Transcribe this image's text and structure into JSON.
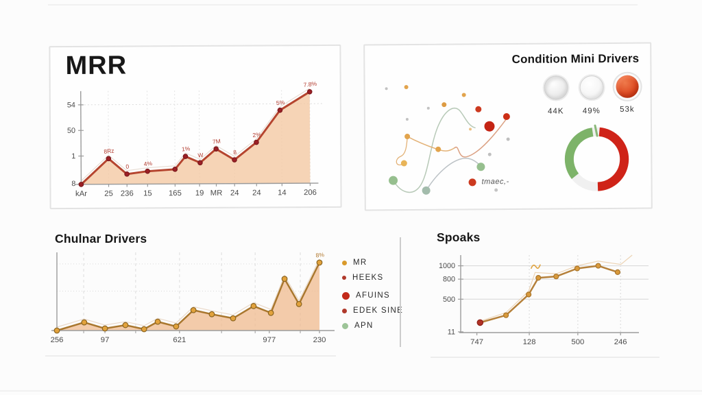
{
  "colors": {
    "mrr_line": "#b5452f",
    "mrr_marker": "#9c2026",
    "area_fill": "#f3c8a2",
    "chulnar_line": "#a9772e",
    "chulnar_marker": "#e2a23c",
    "spoaks_line": "#b5803a",
    "spoaks_marker": "#d99a3c",
    "spoaks_first_marker": "#b03226",
    "donut_green": "#7db369",
    "donut_red": "#cf2318",
    "mini_red": "#dd4a22"
  },
  "panels": {
    "mrr": {
      "title": "MRR"
    },
    "condition": {
      "title": "Condition Mini Drivers",
      "stats": [
        {
          "label": "44K"
        },
        {
          "label": "49%"
        },
        {
          "label": "53k"
        }
      ],
      "scatter_legend_label": "tmaec,-"
    },
    "chulnar": {
      "title": "Chulnar Drivers",
      "legend": [
        {
          "label": "MR",
          "color": "#d99a2b",
          "r": 3.5
        },
        {
          "label": "HEEKS",
          "color": "#b0392b",
          "r": 3
        },
        {
          "label": "AFUINS",
          "color": "#c22a1a",
          "r": 5.5
        },
        {
          "label": "EDEK SINE",
          "color": "#b0392b",
          "r": 3.5
        },
        {
          "label": "APN",
          "color": "#9dc498",
          "r": 4.5
        }
      ]
    },
    "spoaks": {
      "title": "Spoaks"
    }
  },
  "chart_data": [
    {
      "id": "mrr",
      "type": "area",
      "title": "MRR",
      "ylim": [
        0,
        102
      ],
      "y_ticks": [
        [
          "54",
          87
        ],
        [
          "50",
          59
        ],
        [
          "1",
          31
        ],
        [
          "8",
          1
        ]
      ],
      "x_ticks": [
        [
          "kAr",
          0
        ],
        [
          "25",
          0.12
        ],
        [
          "236",
          0.2
        ],
        [
          "15",
          0.29
        ],
        [
          "165",
          0.41
        ],
        [
          "19",
          0.517
        ],
        [
          "MR",
          0.59
        ],
        [
          "24",
          0.67
        ],
        [
          "24",
          0.766
        ],
        [
          "14",
          0.877
        ],
        [
          "206",
          1
        ]
      ],
      "points": [
        [
          0,
          0,
          ""
        ],
        [
          0.12,
          28,
          "8Rz"
        ],
        [
          0.2,
          11,
          "0"
        ],
        [
          0.29,
          14,
          "4%"
        ],
        [
          0.41,
          16,
          ""
        ],
        [
          0.456,
          30,
          "1%"
        ],
        [
          0.52,
          23,
          "W"
        ],
        [
          0.59,
          38,
          "7M"
        ],
        [
          0.67,
          26,
          "8"
        ],
        [
          0.766,
          45,
          "2%"
        ],
        [
          0.87,
          80,
          "5%"
        ],
        [
          1,
          100,
          "7.8%"
        ]
      ],
      "grid_v": [
        0.12,
        0.29,
        0.41,
        0.517,
        0.67,
        0.877,
        1
      ],
      "grid_h": [
        87
      ]
    },
    {
      "id": "scatter",
      "type": "scatter",
      "title": "",
      "legend_label": "tmaec,-",
      "dots": [
        [
          23,
          43,
          2,
          "#c2c2c2"
        ],
        [
          52,
          41,
          3,
          "#e2a44d"
        ],
        [
          136,
          53,
          3,
          "#e2a44d"
        ],
        [
          107,
          67,
          3.5,
          "#dd9b43"
        ],
        [
          84,
          72,
          2,
          "#c2c2c2"
        ],
        [
          157,
          74,
          4.5,
          "#cc3a20"
        ],
        [
          198,
          85,
          5,
          "#cc2f16"
        ],
        [
          173,
          99,
          7.5,
          "#c42414"
        ],
        [
          53,
          88,
          2,
          "#c2c2c2"
        ],
        [
          145,
          103,
          2,
          "#ecc184"
        ],
        [
          53,
          113,
          4,
          "#e2a44d"
        ],
        [
          200,
          118,
          2.5,
          "#bfbfbf"
        ],
        [
          98,
          132,
          4,
          "#e2a44d"
        ],
        [
          173,
          140,
          2.5,
          "#bfbfbf"
        ],
        [
          48,
          152,
          4.5,
          "#e8b458"
        ],
        [
          160,
          158,
          6,
          "#96bf8e"
        ],
        [
          32,
          177,
          6.5,
          "#96bf8e"
        ],
        [
          182,
          192,
          2.5,
          "#c4c4c4"
        ],
        [
          80,
          192,
          6,
          "#a3bcac"
        ]
      ],
      "curves": [
        [
          "M 32 177 C 44 197 60 199 70 187 C 84 170 86 122 100 94 C 108 77 120 67 129 75 C 136 82 141 98 152 101",
          "#b7c9b7",
          1.5
        ],
        [
          "M 53 113 C 70 122 85 128 100 133 C 110 136 116 134 122 130",
          "#e3b277",
          1.5
        ],
        [
          "M 122 130 C 129 124 126 147 140 143 C 158 138 180 112 198 88",
          "#dba183",
          1.5
        ],
        [
          "M 80 192 C 95 168 115 150 132 146 C 144 143 153 150 160 157",
          "#bcc2c6",
          1.5
        ],
        [
          "M 48 152 C 36 160 33 146 43 142 C 51 139 52 126 53 115",
          "#e3b277",
          1.3
        ]
      ]
    },
    {
      "id": "chulnar",
      "type": "area",
      "title": "Chulnar Drivers",
      "ylim": [
        0,
        115
      ],
      "x_ticks": [
        [
          "256",
          0
        ],
        [
          "97",
          0.183
        ],
        [
          "621",
          0.467
        ],
        [
          "977",
          0.809
        ],
        [
          "230",
          1
        ]
      ],
      "points": [
        [
          0,
          0
        ],
        [
          0.104,
          12
        ],
        [
          0.183,
          3
        ],
        [
          0.261,
          8
        ],
        [
          0.332,
          2
        ],
        [
          0.384,
          13
        ],
        [
          0.454,
          6
        ],
        [
          0.52,
          30
        ],
        [
          0.59,
          24
        ],
        [
          0.671,
          18
        ],
        [
          0.749,
          36
        ],
        [
          0.815,
          26
        ],
        [
          0.867,
          76
        ],
        [
          0.922,
          39
        ],
        [
          1,
          100,
          "8%"
        ]
      ],
      "grid_v": [
        0.102,
        0.3,
        0.467,
        0.627,
        0.755,
        0.927
      ],
      "grid_h": [
        98,
        58
      ],
      "minor_ticks": [
        0.102,
        0.3,
        0.627,
        0.755,
        0.927
      ]
    },
    {
      "id": "spoaks",
      "type": "line",
      "title": "Spoaks",
      "ylim": [
        0,
        1160
      ],
      "y_ticks": [
        [
          "1000",
          1000
        ],
        [
          "800",
          800
        ],
        [
          "500",
          500
        ],
        [
          "11",
          11
        ]
      ],
      "x_ticks": [
        [
          "747",
          0.1
        ],
        [
          "128",
          0.424
        ],
        [
          "500",
          0.724
        ],
        [
          "246",
          0.988
        ]
      ],
      "points": [
        [
          0.12,
          150
        ],
        [
          0.28,
          260
        ],
        [
          0.42,
          570
        ],
        [
          0.48,
          820
        ],
        [
          0.59,
          840
        ],
        [
          0.72,
          960
        ],
        [
          0.85,
          1000
        ],
        [
          0.97,
          905
        ]
      ],
      "grid_h": [
        1000,
        800,
        500
      ],
      "grid_v": [
        0.424,
        0.724,
        0.988
      ],
      "ghost": [
        [
          0.12,
          170
        ],
        [
          0.28,
          300
        ],
        [
          0.42,
          620
        ],
        [
          0.46,
          900
        ],
        [
          0.59,
          880
        ],
        [
          0.72,
          1000
        ],
        [
          0.85,
          1070
        ],
        [
          0.99,
          1020
        ],
        [
          1.06,
          1160
        ]
      ],
      "squiggle": [
        0.47,
        860
      ]
    },
    {
      "id": "gauge",
      "type": "pie",
      "title": "",
      "segments": [
        {
          "label": "green",
          "value": 33,
          "color": "#7db369"
        },
        {
          "label": "red",
          "value": 48,
          "color": "#cf2318"
        },
        {
          "label": "empty",
          "value": 19,
          "color": "#ffffff"
        }
      ]
    }
  ]
}
